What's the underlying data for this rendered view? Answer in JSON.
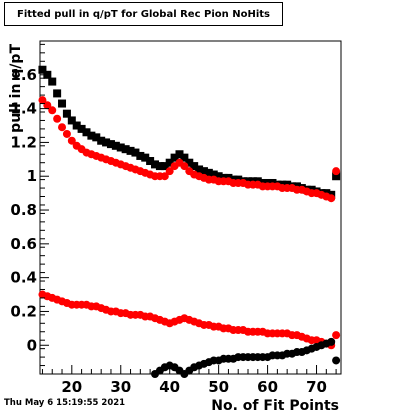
{
  "title": "Fitted pull in q/pT for Global Rec Pion NoHits",
  "timestamp": "Thu May  6 15:19:55 2021",
  "chart_data": {
    "type": "scatter",
    "title": "Fitted pull in q/pT for Global Rec Pion NoHits",
    "xlabel": "No. of Fit Points",
    "ylabel": "pull in q/pT",
    "xlim": [
      13.5,
      75
    ],
    "ylim": [
      -0.17,
      1.8
    ],
    "x_ticks": [
      20,
      30,
      40,
      50,
      60,
      70
    ],
    "x_tick_labels": [
      "20",
      "30",
      "40",
      "50",
      "60",
      "70"
    ],
    "y_ticks": [
      0,
      0.2,
      0.4,
      0.6,
      0.8,
      1,
      1.2,
      1.4,
      1.6
    ],
    "y_tick_labels": [
      "0",
      "0.2",
      "0.4",
      "0.6",
      "0.8",
      "1",
      "1.2",
      "1.4",
      "1.6"
    ],
    "grid": false,
    "series": [
      {
        "color": "#000000",
        "marker": "square",
        "x": [
          14,
          15,
          16,
          17,
          18,
          19,
          20,
          21,
          22,
          23,
          24,
          25,
          26,
          27,
          28,
          29,
          30,
          31,
          32,
          33,
          34,
          35,
          36,
          37,
          38,
          39,
          40,
          41,
          42,
          43,
          44,
          45,
          46,
          47,
          48,
          49,
          50,
          51,
          52,
          53,
          54,
          55,
          56,
          57,
          58,
          59,
          60,
          61,
          62,
          63,
          64,
          65,
          66,
          67,
          68,
          69,
          70,
          71,
          72,
          73,
          74
        ],
        "values": [
          1.63,
          1.6,
          1.56,
          1.49,
          1.43,
          1.37,
          1.33,
          1.3,
          1.28,
          1.26,
          1.24,
          1.23,
          1.21,
          1.2,
          1.19,
          1.18,
          1.17,
          1.16,
          1.15,
          1.14,
          1.12,
          1.11,
          1.09,
          1.07,
          1.06,
          1.06,
          1.08,
          1.11,
          1.13,
          1.11,
          1.08,
          1.06,
          1.04,
          1.03,
          1.02,
          1.01,
          1.0,
          0.99,
          0.99,
          0.98,
          0.98,
          0.97,
          0.97,
          0.97,
          0.97,
          0.96,
          0.96,
          0.96,
          0.95,
          0.95,
          0.95,
          0.94,
          0.94,
          0.93,
          0.92,
          0.92,
          0.91,
          0.9,
          0.9,
          0.89,
          1.0
        ]
      },
      {
        "color": "#ff0000",
        "marker": "circle",
        "x": [
          14,
          15,
          16,
          17,
          18,
          19,
          20,
          21,
          22,
          23,
          24,
          25,
          26,
          27,
          28,
          29,
          30,
          31,
          32,
          33,
          34,
          35,
          36,
          37,
          38,
          39,
          40,
          41,
          42,
          43,
          44,
          45,
          46,
          47,
          48,
          49,
          50,
          51,
          52,
          53,
          54,
          55,
          56,
          57,
          58,
          59,
          60,
          61,
          62,
          63,
          64,
          65,
          66,
          67,
          68,
          69,
          70,
          71,
          72,
          73,
          74
        ],
        "values": [
          1.45,
          1.42,
          1.39,
          1.34,
          1.29,
          1.25,
          1.21,
          1.18,
          1.16,
          1.14,
          1.13,
          1.12,
          1.11,
          1.1,
          1.09,
          1.08,
          1.07,
          1.06,
          1.05,
          1.04,
          1.03,
          1.02,
          1.01,
          1.0,
          1.0,
          1.0,
          1.03,
          1.06,
          1.08,
          1.06,
          1.03,
          1.01,
          1.0,
          0.99,
          0.98,
          0.98,
          0.97,
          0.97,
          0.97,
          0.96,
          0.96,
          0.96,
          0.95,
          0.95,
          0.95,
          0.94,
          0.94,
          0.94,
          0.94,
          0.93,
          0.93,
          0.93,
          0.92,
          0.92,
          0.91,
          0.9,
          0.9,
          0.89,
          0.88,
          0.87,
          1.03
        ]
      },
      {
        "color": "#ff0000",
        "marker": "circle",
        "x": [
          14,
          15,
          16,
          17,
          18,
          19,
          20,
          21,
          22,
          23,
          24,
          25,
          26,
          27,
          28,
          29,
          30,
          31,
          32,
          33,
          34,
          35,
          36,
          37,
          38,
          39,
          40,
          41,
          42,
          43,
          44,
          45,
          46,
          47,
          48,
          49,
          50,
          51,
          52,
          53,
          54,
          55,
          56,
          57,
          58,
          59,
          60,
          61,
          62,
          63,
          64,
          65,
          66,
          67,
          68,
          69,
          70,
          71,
          72,
          73,
          74
        ],
        "values": [
          0.3,
          0.29,
          0.28,
          0.27,
          0.26,
          0.25,
          0.24,
          0.24,
          0.24,
          0.24,
          0.23,
          0.23,
          0.22,
          0.21,
          0.2,
          0.2,
          0.19,
          0.19,
          0.18,
          0.18,
          0.18,
          0.17,
          0.17,
          0.16,
          0.15,
          0.14,
          0.13,
          0.14,
          0.15,
          0.16,
          0.15,
          0.14,
          0.13,
          0.12,
          0.12,
          0.11,
          0.11,
          0.1,
          0.1,
          0.09,
          0.09,
          0.09,
          0.08,
          0.08,
          0.08,
          0.08,
          0.07,
          0.07,
          0.07,
          0.07,
          0.07,
          0.06,
          0.06,
          0.05,
          0.04,
          0.03,
          0.03,
          0.02,
          0.01,
          0.0,
          0.06
        ]
      },
      {
        "color": "#000000",
        "marker": "circle",
        "x": [
          37,
          38,
          39,
          40,
          41,
          42,
          43,
          44,
          45,
          46,
          47,
          48,
          49,
          50,
          51,
          52,
          53,
          54,
          55,
          56,
          57,
          58,
          59,
          60,
          61,
          62,
          63,
          64,
          65,
          66,
          67,
          68,
          69,
          70,
          71,
          72,
          73,
          74
        ],
        "values": [
          -0.17,
          -0.15,
          -0.13,
          -0.12,
          -0.13,
          -0.15,
          -0.17,
          -0.15,
          -0.13,
          -0.12,
          -0.11,
          -0.1,
          -0.09,
          -0.09,
          -0.08,
          -0.08,
          -0.08,
          -0.07,
          -0.07,
          -0.07,
          -0.07,
          -0.07,
          -0.07,
          -0.07,
          -0.06,
          -0.06,
          -0.06,
          -0.05,
          -0.05,
          -0.04,
          -0.04,
          -0.03,
          -0.02,
          -0.01,
          0.0,
          0.01,
          0.02,
          -0.09
        ]
      }
    ]
  }
}
